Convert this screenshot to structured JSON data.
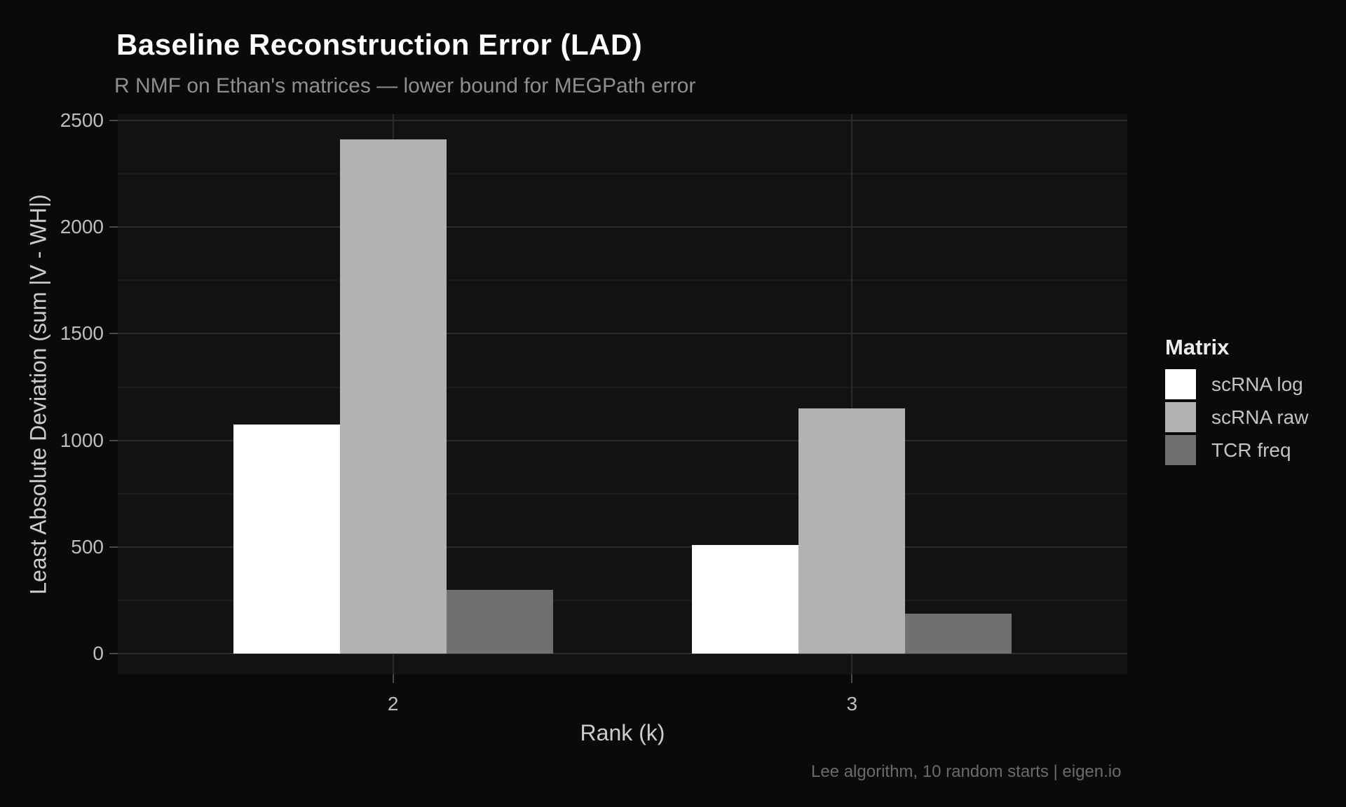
{
  "chart_data": {
    "type": "bar",
    "title": "Baseline Reconstruction Error (LAD)",
    "subtitle": "R NMF on Ethan's matrices — lower bound for MEGPath error",
    "caption": "Lee algorithm, 10 random starts | eigen.io",
    "xlabel": "Rank (k)",
    "ylabel": "Least Absolute Deviation (sum |V - WH|)",
    "legend_title": "Matrix",
    "legend_position": "right",
    "categories": [
      "2",
      "3"
    ],
    "series": [
      {
        "name": "scRNA log",
        "color": "#ffffff",
        "values": [
          1075,
          510
        ]
      },
      {
        "name": "scRNA raw",
        "color": "#b2b2b2",
        "values": [
          2410,
          1150
        ]
      },
      {
        "name": "TCR freq",
        "color": "#707070",
        "values": [
          300,
          187
        ]
      }
    ],
    "ylim": [
      0,
      2500
    ],
    "y_major_ticks": [
      0,
      500,
      1000,
      1500,
      2000,
      2500
    ],
    "y_minor_ticks": [
      250,
      750,
      1250,
      1750,
      2250
    ],
    "grid": "on",
    "theme": {
      "background": "#0a0a0a",
      "panel_background": "#121212",
      "grid_major_color": "#2c2c2c",
      "grid_minor_color": "#1c1c1c",
      "tick_mark_color": "#484848",
      "title_color": "#ffffff",
      "subtitle_color": "#8f8f8f",
      "axis_text_color": "#bdbdbd",
      "axis_title_color": "#cccccc",
      "legend_title_color": "#ededed",
      "legend_text_color": "#c3c3c3",
      "caption_color": "#6b6b6b"
    }
  }
}
